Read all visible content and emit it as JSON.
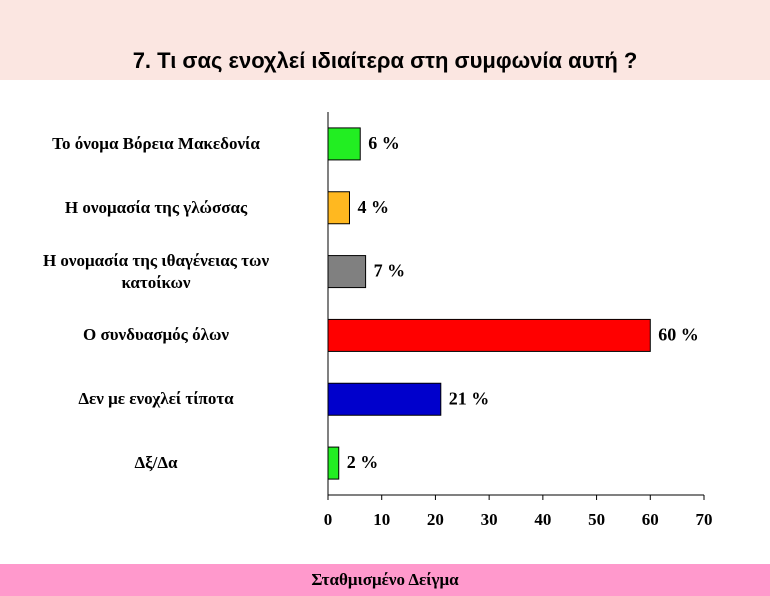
{
  "chart_data": {
    "type": "barh",
    "title": "7. Τι σας ενοχλεί ιδιαίτερα στη συμφωνία αυτή ?",
    "footer": "Σταθμισμένο Δείγμα",
    "categories": [
      "Το όνομα  Βόρεια Μακεδονία",
      "Η ονομασία της γλώσσας",
      "Η ονομασία της ιθαγένειας των\nκατοίκων",
      "Ο συνδυασμός όλων",
      "Δεν με ενοχλεί τίποτα",
      "Δξ/Δα"
    ],
    "values": [
      6,
      4,
      7,
      60,
      21,
      2
    ],
    "value_labels": [
      "6 %",
      "4 %",
      "7 %",
      "60 %",
      "21 %",
      "2 %"
    ],
    "colors": [
      "#22ee22",
      "#ffb820",
      "#808080",
      "#ff0000",
      "#0000cc",
      "#22ee22"
    ],
    "xlim": [
      0,
      70
    ],
    "xticks": [
      0,
      10,
      20,
      30,
      40,
      50,
      60,
      70
    ]
  }
}
